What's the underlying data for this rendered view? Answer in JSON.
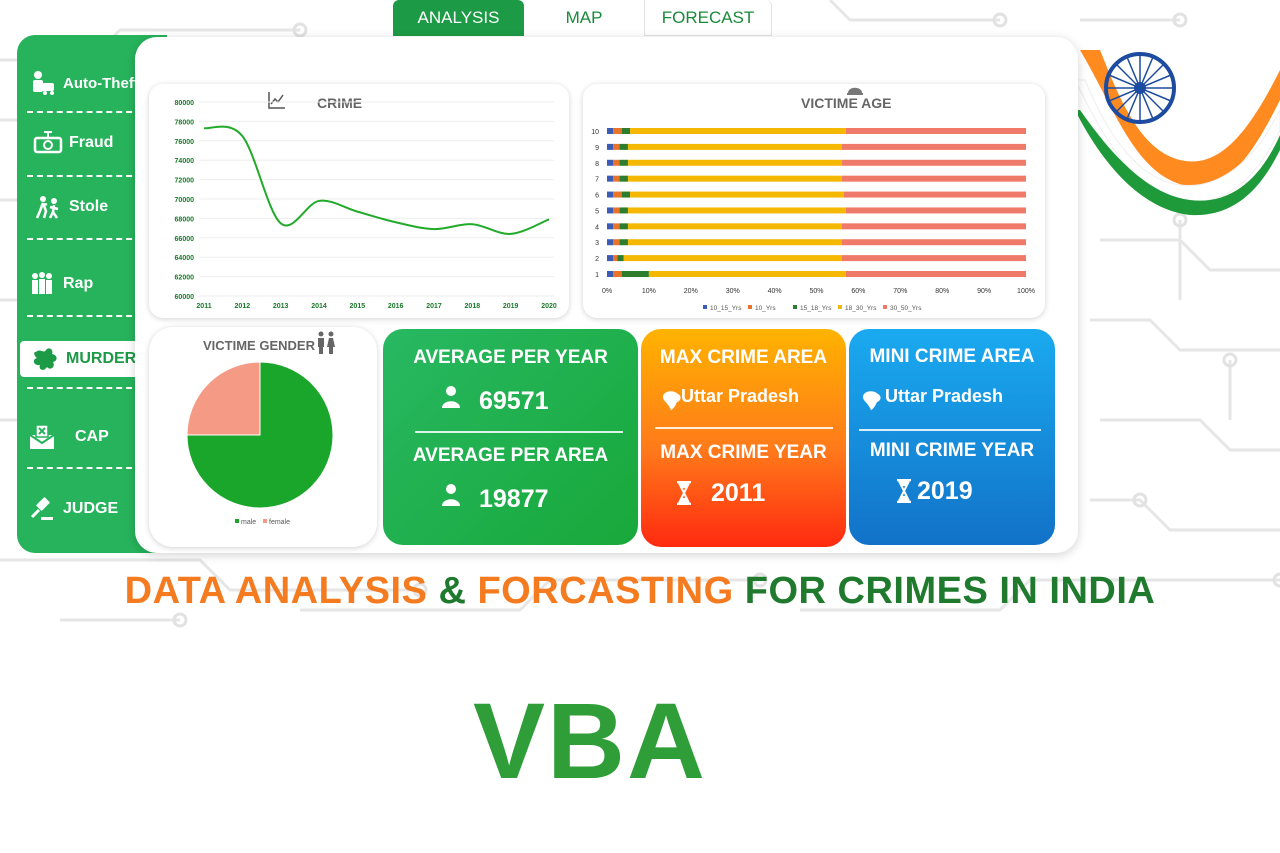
{
  "tabs": [
    {
      "label": "ANALYSIS",
      "active": true
    },
    {
      "label": "MAP",
      "active": false
    },
    {
      "label": "FORECAST",
      "active": false
    }
  ],
  "sidebar": {
    "items": [
      {
        "label": "Auto-Theft",
        "icon": "car-thief-icon"
      },
      {
        "label": "Fraud",
        "icon": "fraud-icon"
      },
      {
        "label": "Stole",
        "icon": "stole-icon"
      },
      {
        "label": "Rap",
        "icon": "people-icon"
      },
      {
        "label": "MURDER",
        "icon": "splat-icon",
        "active": true
      },
      {
        "label": "CAP",
        "icon": "envelope-icon"
      },
      {
        "label": "JUDGE",
        "icon": "gavel-icon"
      }
    ]
  },
  "crime_chart": {
    "title": "CRIME",
    "icon": "line-chart-icon"
  },
  "age_chart": {
    "title": "VICTIME AGE",
    "icon": "helmet-icon"
  },
  "gender_chart": {
    "title": "VICTIME GENDER",
    "icon": "gender-icon"
  },
  "chart_data": [
    {
      "type": "line",
      "title": "CRIME",
      "x": [
        "2011",
        "2012",
        "2013",
        "2014",
        "2015",
        "2016",
        "2017",
        "2018",
        "2019",
        "2020"
      ],
      "values": [
        77300,
        76500,
        67500,
        69800,
        68700,
        67600,
        66900,
        67400,
        66400,
        67900
      ],
      "ylim": [
        60000,
        80000
      ],
      "yticks": [
        "60000",
        "62000",
        "64000",
        "66000",
        "68000",
        "70000",
        "72000",
        "74000",
        "76000",
        "78000",
        "80000"
      ],
      "color": "#22aa2a"
    },
    {
      "type": "bar",
      "orientation": "horizontal-stacked-100",
      "title": "VICTIME AGE",
      "categories": [
        "1",
        "2",
        "3",
        "4",
        "5",
        "6",
        "7",
        "8",
        "9",
        "10"
      ],
      "xticks": [
        "0%",
        "10%",
        "20%",
        "30%",
        "40%",
        "50%",
        "60%",
        "70%",
        "80%",
        "90%",
        "100%"
      ],
      "series": [
        {
          "name": "10_15_Yrs",
          "color": "#3b5bb5",
          "values": [
            1.5,
            1.5,
            1.5,
            1.5,
            1.5,
            1.5,
            1.5,
            1.5,
            1.5,
            1.5
          ]
        },
        {
          "name": "10_Yrs",
          "color": "#e8742a",
          "values": [
            2,
            1,
            1.5,
            1.5,
            1.5,
            2,
            1.5,
            1.5,
            1.5,
            2
          ]
        },
        {
          "name": "15_18_Yrs",
          "color": "#2e7d2e",
          "values": [
            6.5,
            1.5,
            2,
            2,
            2,
            2,
            2,
            2,
            2,
            2
          ]
        },
        {
          "name": "18_30_Yrs",
          "color": "#f5b800",
          "values": [
            47,
            52,
            51,
            51,
            52,
            51,
            51,
            51,
            51,
            51.5
          ]
        },
        {
          "name": "30_50_Yrs",
          "color": "#f07a6a",
          "values": [
            43,
            44,
            44,
            44,
            43,
            43.5,
            44,
            44,
            44,
            43
          ]
        }
      ]
    },
    {
      "type": "pie",
      "title": "VICTIME GENDER",
      "labels": [
        "male",
        "female"
      ],
      "values": [
        75,
        25
      ],
      "colors": [
        "#1aa62a",
        "#f59b85"
      ]
    }
  ],
  "kpi": {
    "avg_year_label": "AVERAGE PER YEAR",
    "avg_year_value": "69571",
    "avg_area_label": "AVERAGE PER AREA",
    "avg_area_value": "19877",
    "max_area_label": "MAX CRIME AREA",
    "max_area_value": "Uttar Pradesh",
    "max_year_label": "MAX CRIME YEAR",
    "max_year_value": "2011",
    "min_area_label": "MINI CRIME AREA",
    "min_area_value": "Uttar Pradesh",
    "min_year_label": "MINI CRIME YEAR",
    "min_year_value": "2019"
  },
  "headline": {
    "part1": "DATA ANALYSIS",
    "part2": " & ",
    "part3": "FORCASTING",
    "part4": " FOR CRIMES IN INDIA"
  },
  "footer": {
    "title": "VBA"
  },
  "colors": {
    "orange": "#f47b20",
    "green": "#1f7a2e",
    "sidebar_green": "#27b35c"
  }
}
